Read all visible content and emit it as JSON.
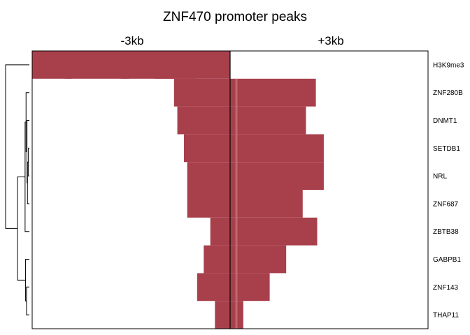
{
  "chart_data": {
    "type": "heatmap",
    "title": "ZNF470 promoter peaks",
    "column_labels": [
      "-3kb",
      "+3kb"
    ],
    "xlim": [
      -3000,
      3000
    ],
    "center_line": 0,
    "colors": {
      "peak": "#a8404c",
      "peak_light": "#c87880",
      "center": "#000000",
      "dendrogram": "#000000"
    },
    "rows": [
      {
        "name": "H3K9me3",
        "segments": [
          [
            -3000,
            -500
          ],
          [
            -2500,
            -2400
          ],
          [
            -1650,
            -1530
          ],
          [
            -1150,
            0
          ]
        ]
      },
      {
        "name": "ZNF280B",
        "segments": [
          [
            -850,
            0
          ],
          [
            0,
            1300
          ]
        ]
      },
      {
        "name": "DNMT1",
        "segments": [
          [
            -800,
            0
          ],
          [
            0,
            1150
          ]
        ]
      },
      {
        "name": "SETDB1",
        "segments": [
          [
            -700,
            0
          ],
          [
            0,
            1420
          ]
        ]
      },
      {
        "name": "NRL",
        "segments": [
          [
            -650,
            0
          ],
          [
            0,
            1420
          ]
        ]
      },
      {
        "name": "ZNF687",
        "segments": [
          [
            -650,
            0
          ],
          [
            0,
            1100
          ]
        ]
      },
      {
        "name": "ZBTB38",
        "segments": [
          [
            -300,
            0
          ],
          [
            0,
            1320
          ]
        ]
      },
      {
        "name": "GABPB1",
        "segments": [
          [
            -400,
            0
          ],
          [
            0,
            850
          ]
        ]
      },
      {
        "name": "ZNF143",
        "segments": [
          [
            -500,
            0
          ],
          [
            0,
            600
          ]
        ]
      },
      {
        "name": "THAP11",
        "segments": [
          [
            -230,
            0
          ],
          [
            0,
            200
          ]
        ]
      }
    ],
    "dendrogram": {
      "merges": [
        {
          "left": "NRL",
          "right": "SETDB1",
          "height": 0.04
        },
        {
          "left": "ZNF687",
          "right": "m1",
          "height": 0.08
        },
        {
          "left": "DNMT1",
          "right": "m2",
          "height": 0.1
        },
        {
          "left": "ZNF280B",
          "right": "m3",
          "height": 0.14
        },
        {
          "left": "ZBTB38",
          "right": "m4",
          "height": 0.18
        },
        {
          "left": "ZNF143",
          "right": "THAP11",
          "height": 0.12
        },
        {
          "left": "GABPB1",
          "right": "m6",
          "height": 0.16
        },
        {
          "left": "m5",
          "right": "m7",
          "height": 0.5
        },
        {
          "left": "H3K9me3",
          "right": "m8",
          "height": 1.0
        }
      ]
    }
  }
}
